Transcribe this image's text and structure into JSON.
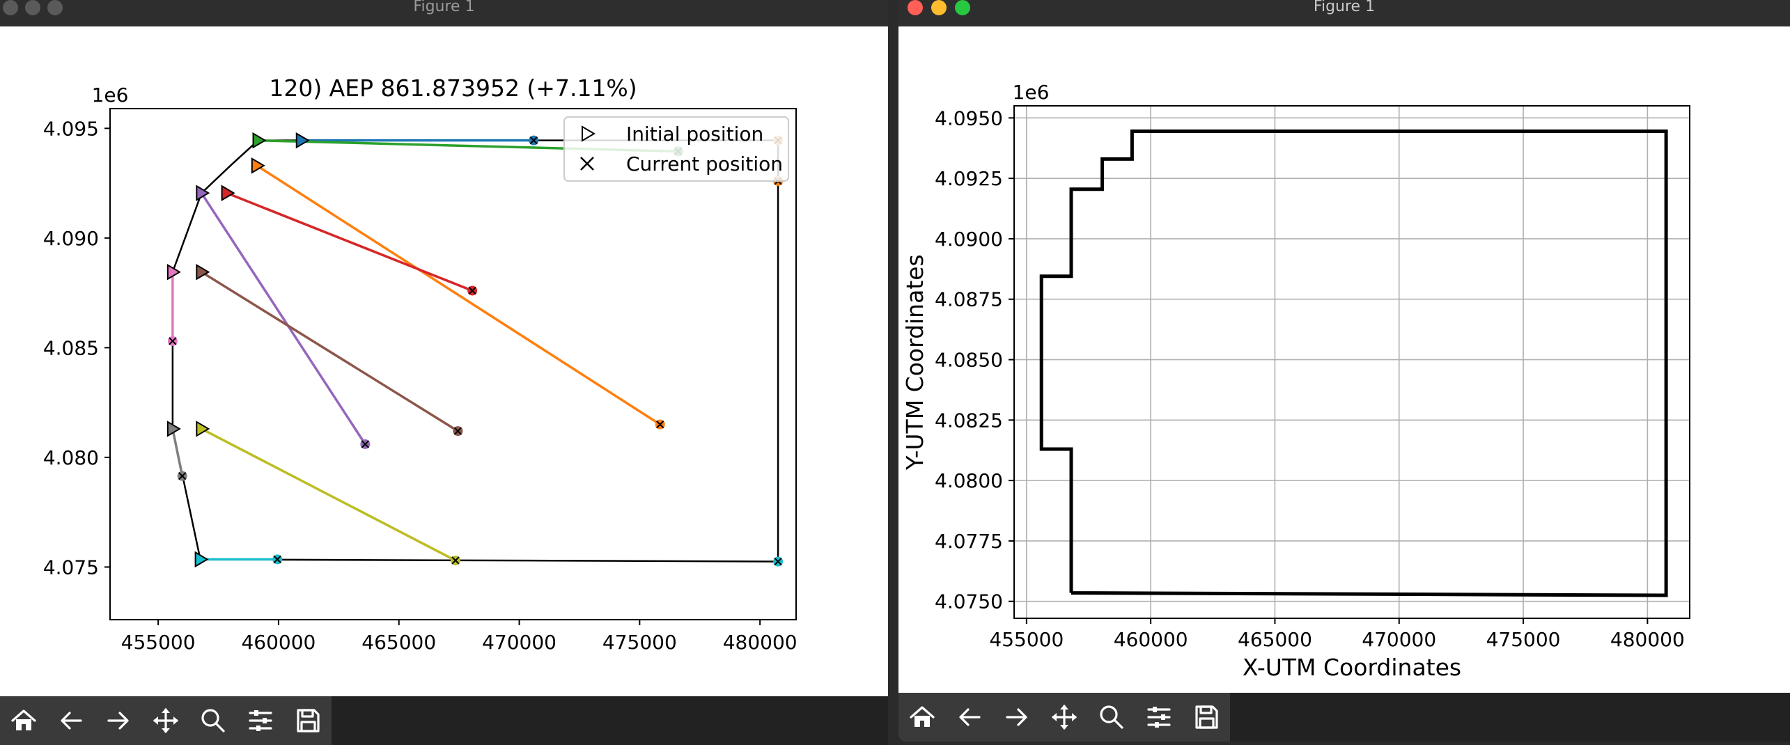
{
  "windows": [
    {
      "title": "Figure 1",
      "toolbar": [
        "home-icon",
        "back-icon",
        "forward-icon",
        "pan-icon",
        "zoom-icon",
        "configure-icon",
        "save-icon"
      ]
    },
    {
      "title": "Figure 1",
      "toolbar": [
        "home-icon",
        "back-icon",
        "forward-icon",
        "pan-icon",
        "zoom-icon",
        "configure-icon",
        "save-icon"
      ]
    }
  ],
  "colors": {
    "close": "#ff5f57",
    "minimize": "#febc2e",
    "maximize": "#28c840",
    "series": [
      "#1f77b4",
      "#ff7f0e",
      "#2ca02c",
      "#d62728",
      "#9467bd",
      "#8c564b",
      "#e377c2",
      "#7f7f7f",
      "#bcbd22",
      "#17becf"
    ]
  },
  "chart_data": [
    {
      "type": "line",
      "title": "120) AEP 861.873952  (+7.11%)",
      "offset_label": "1e6",
      "xlim": [
        453000,
        481500
      ],
      "ylim": [
        4072600,
        4095900
      ],
      "x_ticks": [
        455000,
        460000,
        465000,
        470000,
        475000,
        480000
      ],
      "x_tick_labels": [
        "455000",
        "460000",
        "465000",
        "470000",
        "475000",
        "480000"
      ],
      "y_ticks": [
        4075000,
        4080000,
        4085000,
        4090000,
        4095000
      ],
      "y_tick_labels": [
        "4.075",
        "4.080",
        "4.085",
        "4.090",
        "4.095"
      ],
      "grid": false,
      "legend": {
        "placement": "top-right",
        "entries": [
          "Initial position",
          "Current position"
        ]
      },
      "boundary": [
        [
          456750,
          4075350
        ],
        [
          455600,
          4081300
        ],
        [
          455600,
          4088450
        ],
        [
          456800,
          4092050
        ],
        [
          458050,
          4093350
        ],
        [
          459150,
          4094450
        ],
        [
          480750,
          4094450
        ],
        [
          480750,
          4075250
        ],
        [
          456750,
          4075350
        ]
      ],
      "turbines": [
        {
          "initial": [
            460950,
            4094450
          ],
          "current": [
            470600,
            4094450
          ]
        },
        {
          "initial": [
            459100,
            4093300
          ],
          "current": [
            475850,
            4081500
          ]
        },
        {
          "initial": [
            459150,
            4094450
          ],
          "current": [
            476600,
            4093950
          ]
        },
        {
          "initial": [
            457850,
            4092050
          ],
          "current": [
            468050,
            4087600
          ]
        },
        {
          "initial": [
            456800,
            4092050
          ],
          "current": [
            463600,
            4080600
          ]
        },
        {
          "initial": [
            456800,
            4088450
          ],
          "current": [
            467450,
            4081200
          ]
        },
        {
          "initial": [
            455600,
            4088450
          ],
          "current": [
            455600,
            4085300
          ]
        },
        {
          "initial": [
            455600,
            4081300
          ],
          "current": [
            456000,
            4079150
          ]
        },
        {
          "initial": [
            456800,
            4081300
          ],
          "current": [
            467350,
            4075300
          ]
        },
        {
          "initial": [
            456750,
            4075350
          ],
          "current": [
            459950,
            4075350
          ]
        }
      ],
      "extra_markers": [
        {
          "color_index": 1,
          "x": 480750,
          "y": 4092600
        },
        {
          "color_index": 1,
          "x": 480750,
          "y": 4094450
        },
        {
          "color_index": 9,
          "x": 480750,
          "y": 4075250
        }
      ]
    },
    {
      "type": "line",
      "title": "",
      "offset_label": "1e6",
      "xlabel": "X-UTM Coordinates",
      "ylabel": "Y-UTM Coordinates",
      "xlim": [
        454500,
        481700
      ],
      "ylim": [
        4074300,
        4095500
      ],
      "x_ticks": [
        455000,
        460000,
        465000,
        470000,
        475000,
        480000
      ],
      "x_tick_labels": [
        "455000",
        "460000",
        "465000",
        "470000",
        "475000",
        "480000"
      ],
      "y_ticks": [
        4075000,
        4077500,
        4080000,
        4082500,
        4085000,
        4087500,
        4090000,
        4092500,
        4095000
      ],
      "y_tick_labels": [
        "4.0750",
        "4.0775",
        "4.0800",
        "4.0825",
        "4.0850",
        "4.0875",
        "4.0900",
        "4.0925",
        "4.0950"
      ],
      "grid": true,
      "boundary": [
        [
          456800,
          4075350
        ],
        [
          456800,
          4081300
        ],
        [
          455600,
          4081300
        ],
        [
          455600,
          4088450
        ],
        [
          456800,
          4088450
        ],
        [
          456800,
          4092050
        ],
        [
          458050,
          4092050
        ],
        [
          458050,
          4093300
        ],
        [
          459250,
          4093300
        ],
        [
          459250,
          4094450
        ],
        [
          480750,
          4094450
        ],
        [
          480750,
          4075250
        ],
        [
          456800,
          4075350
        ]
      ]
    }
  ]
}
